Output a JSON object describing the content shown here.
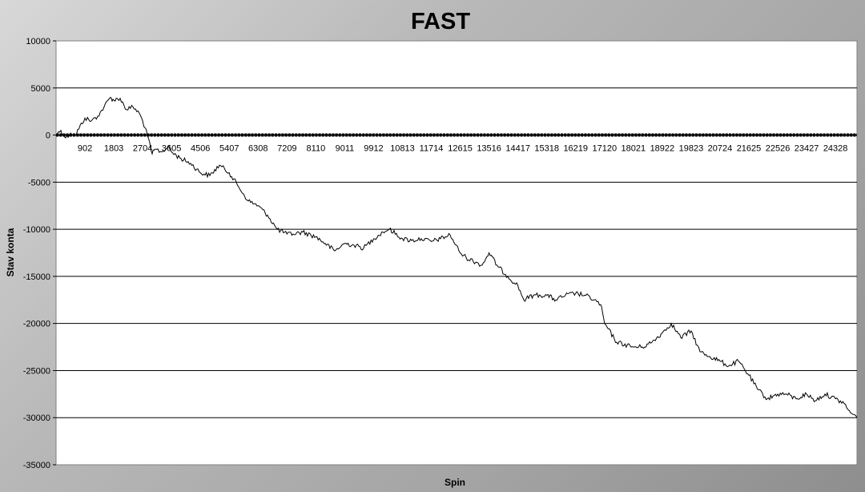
{
  "chart_data": {
    "type": "line",
    "title": "FAST",
    "xlabel": "Spin",
    "ylabel": "Stav konta",
    "ylim": [
      -35000,
      10000
    ],
    "yticks": [
      10000,
      5000,
      0,
      -5000,
      -10000,
      -15000,
      -20000,
      -25000,
      -30000,
      -35000
    ],
    "xlim": [
      1,
      25000
    ],
    "xticks": [
      902,
      1803,
      2704,
      3605,
      4506,
      5407,
      6308,
      7209,
      8110,
      9011,
      9912,
      10813,
      11714,
      12615,
      13516,
      14417,
      15318,
      16219,
      17120,
      18021,
      18922,
      19823,
      20724,
      21625,
      22526,
      23427,
      24328
    ],
    "grid": true,
    "legend": "none",
    "series": [
      {
        "color": "#000000",
        "x": [
          1,
          150,
          300,
          450,
          600,
          902,
          1100,
          1300,
          1500,
          1700,
          1803,
          2000,
          2200,
          2400,
          2600,
          2704,
          2850,
          3000,
          3100,
          3300,
          3500,
          3605,
          3900,
          4200,
          4506,
          4800,
          5100,
          5407,
          5700,
          6000,
          6308,
          6600,
          6900,
          7209,
          7400,
          7700,
          8110,
          8400,
          8700,
          9011,
          9300,
          9600,
          9912,
          10200,
          10400,
          10813,
          11100,
          11400,
          11714,
          12000,
          12300,
          12615,
          12800,
          13100,
          13300,
          13516,
          13800,
          14100,
          14417,
          14600,
          14900,
          15318,
          15600,
          15900,
          16219,
          16500,
          16800,
          17000,
          17120,
          17500,
          18021,
          18300,
          18600,
          18922,
          19200,
          19500,
          19823,
          20100,
          20400,
          20724,
          21000,
          21300,
          21625,
          21900,
          22200,
          22526,
          22800,
          23100,
          23427,
          23700,
          24000,
          24328,
          24600,
          24800,
          25000
        ],
        "values": [
          0,
          500,
          -300,
          200,
          0,
          1800,
          1500,
          2000,
          3000,
          4000,
          3700,
          3900,
          2700,
          3000,
          2300,
          1500,
          0,
          -2000,
          -1500,
          -1800,
          -1200,
          -1800,
          -2500,
          -3000,
          -4000,
          -4300,
          -3200,
          -4000,
          -5500,
          -7000,
          -7500,
          -8500,
          -10000,
          -10500,
          -10500,
          -10300,
          -10800,
          -11500,
          -12300,
          -11500,
          -11700,
          -12000,
          -11000,
          -10300,
          -10000,
          -11000,
          -11200,
          -11000,
          -11300,
          -11000,
          -10600,
          -12500,
          -13000,
          -13500,
          -13800,
          -12500,
          -14000,
          -15000,
          -16000,
          -17500,
          -17000,
          -17000,
          -17500,
          -17000,
          -16800,
          -17000,
          -17500,
          -18000,
          -20000,
          -22000,
          -22500,
          -22500,
          -22000,
          -21000,
          -20000,
          -21500,
          -20800,
          -23000,
          -23500,
          -24000,
          -24500,
          -24000,
          -25500,
          -27000,
          -28000,
          -27500,
          -27500,
          -28000,
          -27500,
          -28200,
          -27500,
          -28000,
          -28500,
          -29500,
          -30000
        ]
      }
    ]
  }
}
